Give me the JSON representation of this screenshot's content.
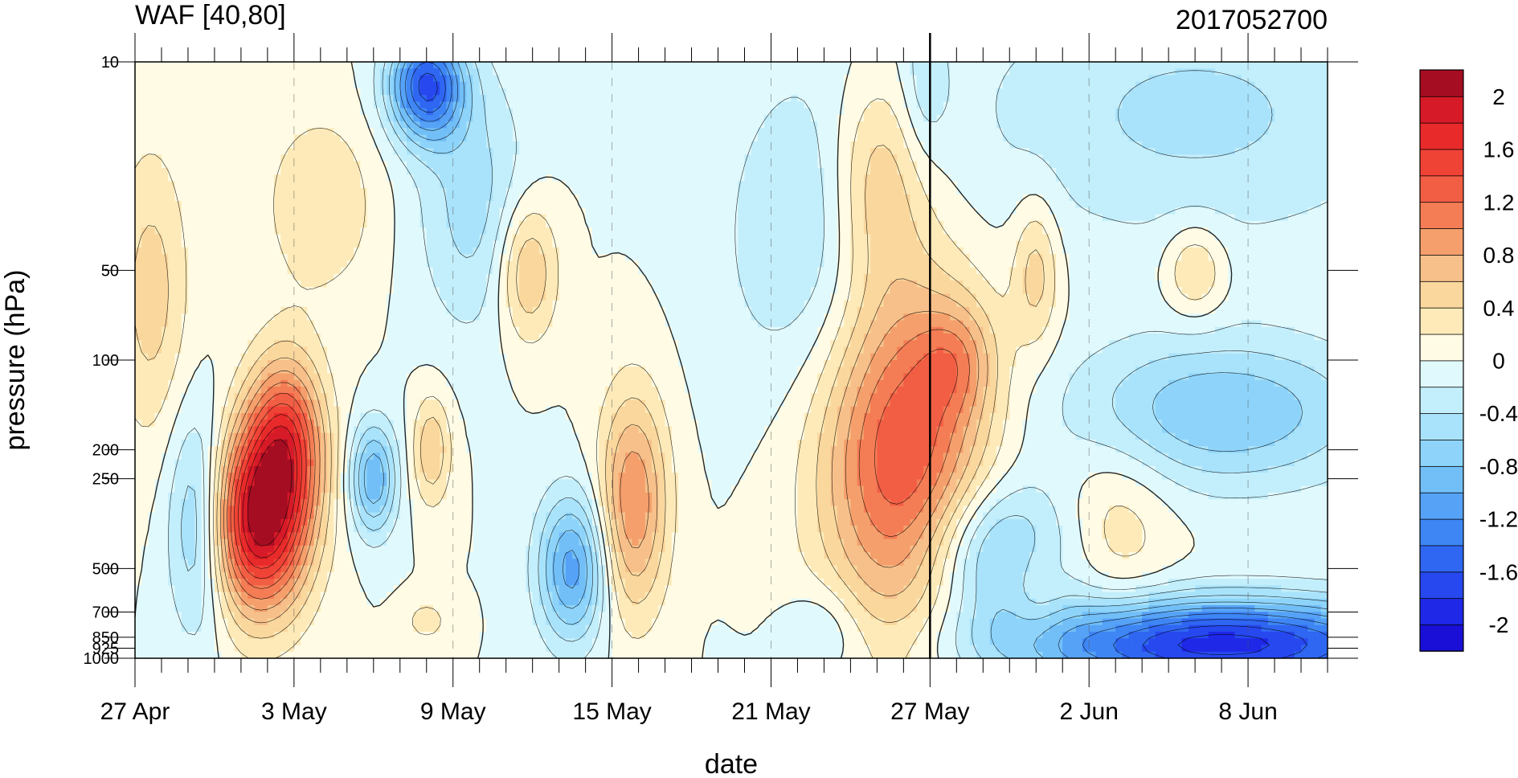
{
  "chart_data": {
    "type": "heatmap",
    "title": "WAF [40,80]",
    "subtitle": "2017052700",
    "xlabel": "date",
    "ylabel": "pressure (hPa)",
    "x_tick_labels": [
      "27 Apr",
      "3 May",
      "9 May",
      "15 May",
      "21 May",
      "27 May",
      "2 Jun",
      "8 Jun"
    ],
    "x_range": [
      "2017-04-27",
      "2017-06-11"
    ],
    "x_step_days": 1,
    "y_tick_labels": [
      "10",
      "50",
      "100",
      "200",
      "250",
      "500",
      "700",
      "850",
      "925",
      "1000"
    ],
    "y_ticks": [
      10,
      50,
      100,
      200,
      250,
      500,
      700,
      850,
      925,
      1000
    ],
    "y_range": [
      1000,
      10
    ],
    "y_scale": "log",
    "reference_line_date": "2017-05-27",
    "colorbar": {
      "levels": [
        -2.2,
        -2,
        -1.8,
        -1.6,
        -1.4,
        -1.2,
        -1,
        -0.8,
        -0.6,
        -0.4,
        -0.2,
        0,
        0.2,
        0.4,
        0.6,
        0.8,
        1,
        1.2,
        1.4,
        1.6,
        1.8,
        2,
        2.2
      ],
      "tick_labels": [
        "2",
        "1.6",
        "1.2",
        "0.8",
        "0.4",
        "0",
        "-0.4",
        "-0.8",
        "-1.2",
        "-1.6",
        "-2"
      ],
      "tick_values": [
        2,
        1.6,
        1.2,
        0.8,
        0.4,
        0,
        -0.4,
        -0.8,
        -1.2,
        -1.6,
        -2
      ],
      "colors": [
        "#1a0fd6",
        "#1e28e6",
        "#2648ee",
        "#2f66f2",
        "#3f86f5",
        "#56a2f7",
        "#72bff8",
        "#8ed4fa",
        "#a9e3fb",
        "#c3eefb",
        "#e0f9fd",
        "#fffbe4",
        "#fdeab8",
        "#fad79d",
        "#f7c08a",
        "#f5a06c",
        "#f47d55",
        "#f25e44",
        "#ef4336",
        "#e82a2a",
        "#d71a28",
        "#a50d22"
      ]
    },
    "anomalies": [
      {
        "day": 4.7,
        "p": 350,
        "sd": 1.3,
        "sp": 0.5,
        "a": 2.0
      },
      {
        "day": 5.7,
        "p": 180,
        "sd": 1.0,
        "sp": 0.45,
        "a": 1.3
      },
      {
        "day": 29.0,
        "p": 200,
        "sd": 2.2,
        "sp": 1.0,
        "a": 1.45
      },
      {
        "day": 28.0,
        "p": 25,
        "sd": 1.3,
        "sp": 0.6,
        "a": 0.7
      },
      {
        "day": 31.0,
        "p": 100,
        "sd": 1.0,
        "sp": 0.3,
        "a": 0.5
      },
      {
        "day": 18.8,
        "p": 300,
        "sd": 0.9,
        "sp": 0.6,
        "a": 1.0
      },
      {
        "day": 14.8,
        "p": 50,
        "sd": 0.8,
        "sp": 0.4,
        "a": 0.7
      },
      {
        "day": 11.2,
        "p": 200,
        "sd": 0.5,
        "sp": 0.3,
        "a": 0.6
      },
      {
        "day": 0.6,
        "p": 60,
        "sd": 1.0,
        "sp": 0.8,
        "a": 0.5
      },
      {
        "day": 34.0,
        "p": 50,
        "sd": 0.6,
        "sp": 0.4,
        "a": 0.5
      },
      {
        "day": 40.0,
        "p": 50,
        "sd": 0.8,
        "sp": 0.25,
        "a": 0.5
      },
      {
        "day": 11.0,
        "p": 750,
        "sd": 0.6,
        "sp": 0.12,
        "a": 0.3
      },
      {
        "day": 11.0,
        "p": 12,
        "sd": 1.0,
        "sp": 0.3,
        "a": -1.6
      },
      {
        "day": 12.8,
        "p": 30,
        "sd": 1.5,
        "sp": 0.7,
        "a": -0.5
      },
      {
        "day": 16.5,
        "p": 500,
        "sd": 0.9,
        "sp": 0.4,
        "a": -1.1
      },
      {
        "day": 9.0,
        "p": 250,
        "sd": 0.6,
        "sp": 0.3,
        "a": -1.0
      },
      {
        "day": 2.4,
        "p": 350,
        "sd": 0.8,
        "sp": 0.6,
        "a": -0.8
      },
      {
        "day": 26.0,
        "p": 40,
        "sd": 2.5,
        "sp": 0.9,
        "a": -0.5
      },
      {
        "day": 29.8,
        "p": 12,
        "sd": 0.6,
        "sp": 0.4,
        "a": -0.3
      },
      {
        "day": 32.5,
        "p": 450,
        "sd": 2.0,
        "sp": 0.4,
        "a": -0.9
      },
      {
        "day": 41.0,
        "p": 900,
        "sd": 5.5,
        "sp": 0.25,
        "a": -1.9
      },
      {
        "day": 41.0,
        "p": 150,
        "sd": 4.0,
        "sp": 0.4,
        "a": -0.8
      },
      {
        "day": 40.0,
        "p": 15,
        "sd": 6.0,
        "sp": 0.7,
        "a": -0.45
      },
      {
        "day": 37.0,
        "p": 350,
        "sd": 1.5,
        "sp": 0.5,
        "a": 0.35
      },
      {
        "day": 34.0,
        "p": 600,
        "sd": 0.8,
        "sp": 0.3,
        "a": 0.35
      },
      {
        "day": 7.0,
        "p": 30,
        "sd": 1.5,
        "sp": 0.5,
        "a": 0.4
      },
      {
        "day": 26.0,
        "p": 800,
        "sd": 1.0,
        "sp": 0.25,
        "a": -0.3
      }
    ]
  }
}
